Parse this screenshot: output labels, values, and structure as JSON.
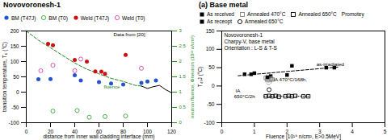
{
  "chart_data": [
    {
      "type": "scatter",
      "title": "Novovoronesh-1",
      "xlabel": "distance from inner wall cladding interface (mm)",
      "ylabel": "transition temperature, T₀ (°C)",
      "y2label": "neutron fluence, Φneutron (10²¹ n/cm²)",
      "xlim": [
        0,
        120
      ],
      "xticks": [
        0,
        20,
        40,
        60,
        80,
        100,
        120
      ],
      "ylim": [
        -100,
        200
      ],
      "yticks": [
        -100,
        -50,
        0,
        50,
        100,
        150,
        200
      ],
      "y2lim": [
        0,
        3
      ],
      "y2ticks": [
        0,
        0.5,
        1,
        1.5,
        2,
        2.5,
        3
      ],
      "legend": "top",
      "series": [
        {
          "name": "BM (T47J)",
          "type": "scatter",
          "marker": "circle",
          "color": "#2255cc",
          "x": [
            10,
            20,
            40,
            45,
            60,
            70,
            80,
            95,
            100,
            107
          ],
          "values": [
            42,
            43,
            55,
            38,
            33,
            28,
            25,
            30,
            35,
            38
          ]
        },
        {
          "name": "BM (T0)",
          "type": "scatter",
          "marker": "open circle",
          "color": "#33aa33",
          "x": [
            22,
            42,
            52,
            65,
            82
          ],
          "values": [
            -62,
            -60,
            -82,
            -80,
            -78
          ]
        },
        {
          "name": "Weld (T47J)",
          "type": "scatter",
          "marker": "circle",
          "color": "#cc1111",
          "x": [
            18,
            22,
            40,
            50,
            57,
            62,
            65,
            82
          ],
          "values": [
            158,
            153,
            105,
            100,
            68,
            67,
            60,
            122
          ]
        },
        {
          "name": "Weld (T0)",
          "type": "scatter",
          "marker": "open circle",
          "color": "#dd44aa",
          "x": [
            12,
            22,
            40,
            45,
            95
          ],
          "values": [
            70,
            88,
            70,
            108,
            78
          ]
        },
        {
          "type": "line",
          "axis": "y2",
          "color": "#228822",
          "line_style": "dashed",
          "x": [
            0,
            10,
            20,
            30,
            40,
            50,
            60,
            70,
            80,
            90,
            95
          ],
          "values": [
            3.0,
            2.7,
            2.45,
            2.2,
            1.95,
            1.75,
            1.6,
            1.45,
            1.35,
            1.22,
            1.2
          ]
        },
        {
          "type": "line",
          "axis": "y2",
          "color": "black",
          "line_style": "solid",
          "x": [
            95,
            100,
            105,
            110,
            115,
            120
          ],
          "values": [
            1.2,
            1.12,
            1.18,
            1.22,
            1.08,
            0.98
          ]
        }
      ],
      "annotations": [
        {
          "text": "fluence",
          "x": 64,
          "y": 1.12,
          "axis": "y2",
          "color": "#228822"
        },
        {
          "text": "Data from [20]",
          "x": 72,
          "y": 183
        }
      ]
    },
    {
      "type": "scatter",
      "title": "(a) Base metal",
      "xlabel": "Fluence [10¹⁹ n/cm², E>0.5MeV]",
      "ylabel": "T₄₇J (°C)",
      "xlim": [
        0,
        5
      ],
      "xticks": [
        0,
        1,
        2,
        3,
        4,
        5
      ],
      "ylim": [
        -100,
        150
      ],
      "yticks": [
        -100,
        -50,
        0,
        50,
        100,
        150
      ],
      "legend": "top",
      "series": [
        {
          "name": "As received",
          "type": "scatter",
          "marker": "square",
          "color": "black",
          "x": [
            0.7,
            1.0,
            1.5,
            2.0,
            2.15,
            3.2,
            3.45
          ],
          "values": [
            32,
            35,
            27,
            30,
            55,
            50,
            50
          ]
        },
        {
          "name": "Annealed 470°C",
          "type": "scatter",
          "marker": "open square",
          "color": "gray",
          "x": [
            1.35,
            1.4,
            1.45,
            1.5,
            1.55
          ],
          "values": [
            22,
            18,
            16,
            20,
            18
          ]
        },
        {
          "name": "Annealed 650°C",
          "type": "scatter",
          "marker": "open square",
          "color": "black",
          "x": [
            1.35,
            1.45,
            1.55,
            1.65,
            1.75,
            1.95,
            2.05,
            2.15,
            2.25,
            2.5,
            2.65
          ],
          "values": [
            -28,
            -27,
            -28,
            -27,
            -29,
            -28,
            -27,
            -28,
            -27,
            -28,
            -28
          ]
        },
        {
          "name": "Promotey",
          "type": "scatter",
          "x": [],
          "values": []
        },
        {
          "name": "As receopt",
          "type": "scatter",
          "marker": "square",
          "color": "black",
          "x": [
            0.9,
            1.4
          ],
          "values": [
            32,
            24
          ]
        },
        {
          "name": "Annealed 650°C",
          "type": "scatter",
          "marker": "open circle",
          "color": "black",
          "x": [
            1.45
          ],
          "values": [
            -10
          ]
        },
        {
          "type": "line",
          "color": "black",
          "line_style": "dashed",
          "x": [
            0.5,
            3.6
          ],
          "values": [
            28,
            52
          ]
        },
        {
          "type": "line",
          "color": "black",
          "line_style": "dotted",
          "x": [
            1.3,
            2.7
          ],
          "values": [
            -28,
            -28
          ]
        },
        {
          "type": "ellipse",
          "color": "gray",
          "line_style": "dashed",
          "x": [
            1.44
          ],
          "values": [
            19
          ],
          "width": [
            0.22
          ],
          "height": [
            30
          ]
        }
      ],
      "annotations": [
        {
          "text": "Novovoronesh-1"
        },
        {
          "text": "Charpy-V, base metal"
        },
        {
          "text": "Orientation : L-S & T-S"
        },
        {
          "text": "as-irradiated",
          "x": 2.9,
          "y": 54
        },
        {
          "text": "IA 470°C/168h,",
          "x": 1.58,
          "y": 12
        },
        {
          "text": "IA",
          "x": 0.42,
          "y": -18
        },
        {
          "text": "650°C/2h",
          "x": 0.38,
          "y": -33
        }
      ]
    }
  ]
}
